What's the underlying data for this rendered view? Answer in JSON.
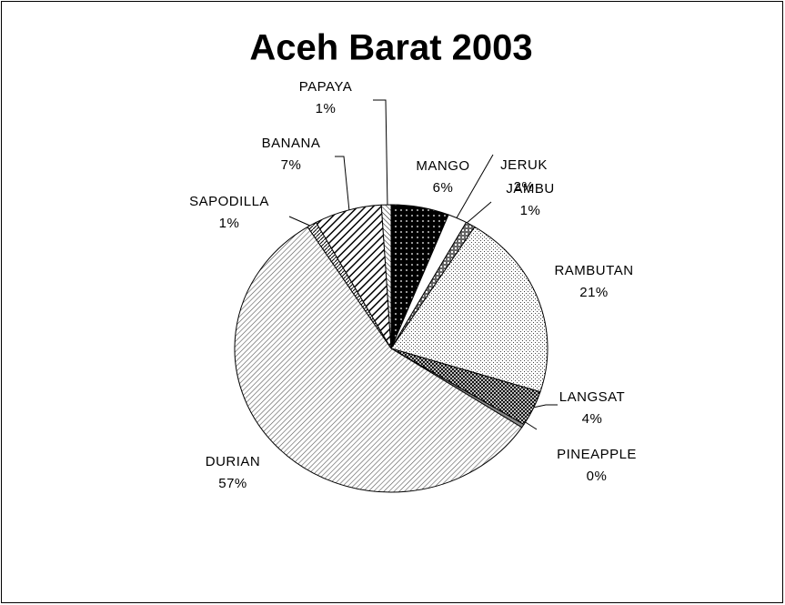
{
  "chart_data": {
    "type": "pie",
    "title": "Aceh Barat 2003",
    "categories": [
      "MANGO",
      "JERUK",
      "JAMBU",
      "RAMBUTAN",
      "LANGSAT",
      "PINEAPPLE",
      "DURIAN",
      "SAPODILLA",
      "BANANA",
      "PAPAYA"
    ],
    "values": [
      6,
      2,
      1,
      21,
      4,
      0.4,
      57,
      1,
      7,
      1
    ],
    "value_labels": [
      "6%",
      "2%",
      "1%",
      "21%",
      "4%",
      "0%",
      "57%",
      "1%",
      "7%",
      "1%"
    ]
  }
}
